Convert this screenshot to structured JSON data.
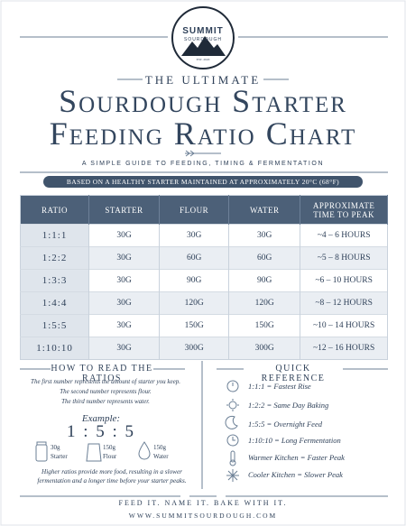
{
  "logo": {
    "name": "SUMMIT",
    "sub": "SOURDOUGH",
    "est": "EST. 2020"
  },
  "header": {
    "kicker": "THE ULTIMATE",
    "title_line1": "Sourdough Starter",
    "title_line2": "Feeding Ratio Chart",
    "subtitle": "A SIMPLE GUIDE TO FEEDING, TIMING & FERMENTATION",
    "banner": "BASED ON A HEALTHY STARTER MAINTAINED AT APPROXIMATELY 20°C (68°F)"
  },
  "table": {
    "columns": [
      "RATIO",
      "STARTER",
      "FLOUR",
      "WATER",
      "APPROXIMATE TIME TO PEAK"
    ],
    "rows": [
      [
        "1:1:1",
        "30G",
        "30G",
        "30G",
        "~4 – 6 HOURS"
      ],
      [
        "1:2:2",
        "30G",
        "60G",
        "60G",
        "~5 – 8 HOURS"
      ],
      [
        "1:3:3",
        "30G",
        "90G",
        "90G",
        "~6 – 10 HOURS"
      ],
      [
        "1:4:4",
        "30G",
        "120G",
        "120G",
        "~8 – 12 HOURS"
      ],
      [
        "1:5:5",
        "30G",
        "150G",
        "150G",
        "~10 – 14 HOURS"
      ],
      [
        "1:10:10",
        "30G",
        "300G",
        "300G",
        "~12 – 16 HOURS"
      ]
    ]
  },
  "how_to": {
    "title": "HOW TO READ THE RATIOS",
    "lines": [
      "The first number represents the amount of starter you keep.",
      "The second number represents flour.",
      "The third number represents water."
    ],
    "example_label": "Example:",
    "example_ratio": "1 : 5 : 5",
    "items": [
      {
        "amount": "30g",
        "label": "Starter"
      },
      {
        "amount": "150g",
        "label": "Flour"
      },
      {
        "amount": "150g",
        "label": "Water"
      }
    ],
    "note": "Higher ratios provide more food, resulting in a slower fermentation and a longer time before your starter peaks."
  },
  "quick_reference": {
    "title": "QUICK REFERENCE",
    "items": [
      "1:1:1 = Fastest Rise",
      "1:2:2 = Same Day Baking",
      "1:5:5 = Overnight Feed",
      "1:10:10 = Long Fermentation",
      "Warmer Kitchen = Faster Peak",
      "Cooler Kitchen = Slower Peak"
    ]
  },
  "footer": {
    "tagline": "FEED IT. NAME IT. BAKE WITH IT.",
    "url": "WWW.SUMMITSOURDOUGH.COM"
  }
}
